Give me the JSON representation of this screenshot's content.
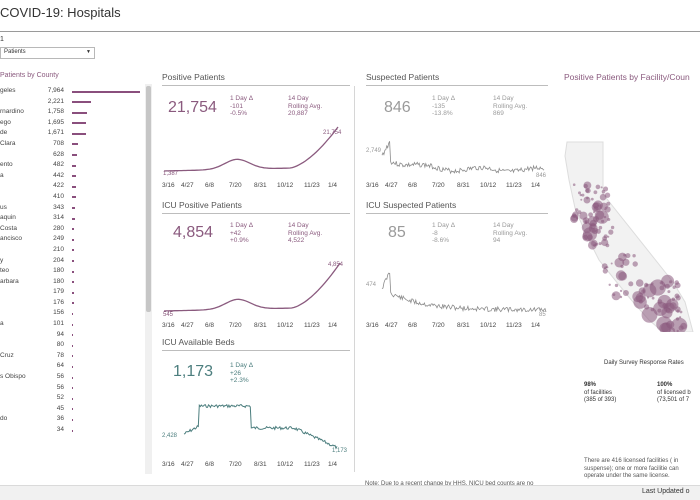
{
  "header": {
    "title": "COVID-19: Hospitals",
    "sub_mark": "1"
  },
  "filter": {
    "selected": "Patients"
  },
  "county_panel": {
    "title": "Patients by County",
    "rows": [
      {
        "name": "geles",
        "value": "7,964",
        "n": 7964
      },
      {
        "name": "",
        "value": "2,221",
        "n": 2221
      },
      {
        "name": "rnardino",
        "value": "1,758",
        "n": 1758
      },
      {
        "name": "ego",
        "value": "1,695",
        "n": 1695
      },
      {
        "name": "de",
        "value": "1,671",
        "n": 1671
      },
      {
        "name": "Clara",
        "value": "708",
        "n": 708
      },
      {
        "name": "",
        "value": "628",
        "n": 628
      },
      {
        "name": "ento",
        "value": "482",
        "n": 482
      },
      {
        "name": "a",
        "value": "442",
        "n": 442
      },
      {
        "name": "",
        "value": "422",
        "n": 422
      },
      {
        "name": "",
        "value": "410",
        "n": 410
      },
      {
        "name": "us",
        "value": "343",
        "n": 343
      },
      {
        "name": "aquin",
        "value": "314",
        "n": 314
      },
      {
        "name": "Costa",
        "value": "280",
        "n": 280
      },
      {
        "name": "ancisco",
        "value": "249",
        "n": 249
      },
      {
        "name": "",
        "value": "210",
        "n": 210
      },
      {
        "name": "y",
        "value": "204",
        "n": 204
      },
      {
        "name": "teo",
        "value": "180",
        "n": 180
      },
      {
        "name": "arbara",
        "value": "180",
        "n": 180
      },
      {
        "name": "",
        "value": "179",
        "n": 179
      },
      {
        "name": "",
        "value": "176",
        "n": 176
      },
      {
        "name": "",
        "value": "156",
        "n": 156
      },
      {
        "name": "a",
        "value": "101",
        "n": 101
      },
      {
        "name": "",
        "value": "94",
        "n": 94
      },
      {
        "name": "",
        "value": "80",
        "n": 80
      },
      {
        "name": "Cruz",
        "value": "78",
        "n": 78
      },
      {
        "name": "",
        "value": "64",
        "n": 64
      },
      {
        "name": "s Obispo",
        "value": "56",
        "n": 56
      },
      {
        "name": "",
        "value": "56",
        "n": 56
      },
      {
        "name": "",
        "value": "52",
        "n": 52
      },
      {
        "name": "",
        "value": "45",
        "n": 45
      },
      {
        "name": "do",
        "value": "36",
        "n": 36
      },
      {
        "name": "",
        "value": "34",
        "n": 34
      }
    ]
  },
  "x_ticks": [
    "3/16",
    "4/27",
    "6/8",
    "7/20",
    "8/31",
    "10/12",
    "11/23",
    "1/4"
  ],
  "cards": {
    "positive": {
      "title": "Positive Patients",
      "value": "21,754",
      "d_label": "1 Day Δ",
      "d_abs": "-101",
      "d_pct": "-0.5%",
      "r_label": "14 Day",
      "r_label2": "Rolling Avg.",
      "r_value": "20,887",
      "start": "1,387",
      "end": "21,754"
    },
    "icu_positive": {
      "title": "ICU Positive Patients",
      "value": "4,854",
      "d_label": "1 Day Δ",
      "d_abs": "+42",
      "d_pct": "+0.9%",
      "r_label": "14 Day",
      "r_label2": "Rolling Avg.",
      "r_value": "4,522",
      "start": "545",
      "end": "4,854"
    },
    "icu_beds": {
      "title": "ICU Available Beds",
      "value": "1,173",
      "d_label": "1 Day Δ",
      "d_abs": "+26",
      "d_pct": "+2.3%",
      "start": "2,428",
      "end": "1,173"
    },
    "suspected": {
      "title": "Suspected Patients",
      "value": "846",
      "d_label": "1 Day Δ",
      "d_abs": "-135",
      "d_pct": "-13.8%",
      "r_label": "14 Day",
      "r_label2": "Rolling Avg.",
      "r_value": "869",
      "start": "2,749",
      "end": "846"
    },
    "icu_suspected": {
      "title": "ICU Suspected Patients",
      "value": "85",
      "d_label": "1 Day Δ",
      "d_abs": "-8",
      "d_pct": "-8.6%",
      "r_label": "14 Day",
      "r_label2": "Rolling Avg.",
      "r_value": "94",
      "start": "474",
      "end": "85"
    }
  },
  "note": "Note: Due to a recent change by HHS, NICU bed counts are no longer provided.",
  "map": {
    "title": "Positive Patients by Facility/Coun"
  },
  "survey": {
    "title": "Daily Survey Response Rates",
    "left_pct": "98%",
    "left_l1": "of facilities",
    "left_l2": "(385 of 393)",
    "right_pct": "100%",
    "right_l1": "of licensed b",
    "right_l2": "(73,501 of 7",
    "license_note": "There are 416 licensed facilities ( in suspense); one or more facilitie can operate under the same license."
  },
  "footer": {
    "last_updated": "Last Updated o"
  },
  "colors": {
    "purple": "#8a5a7e",
    "teal": "#4c7e7e",
    "gray": "#9a9a9a",
    "bar": "#8a4f7d"
  }
}
